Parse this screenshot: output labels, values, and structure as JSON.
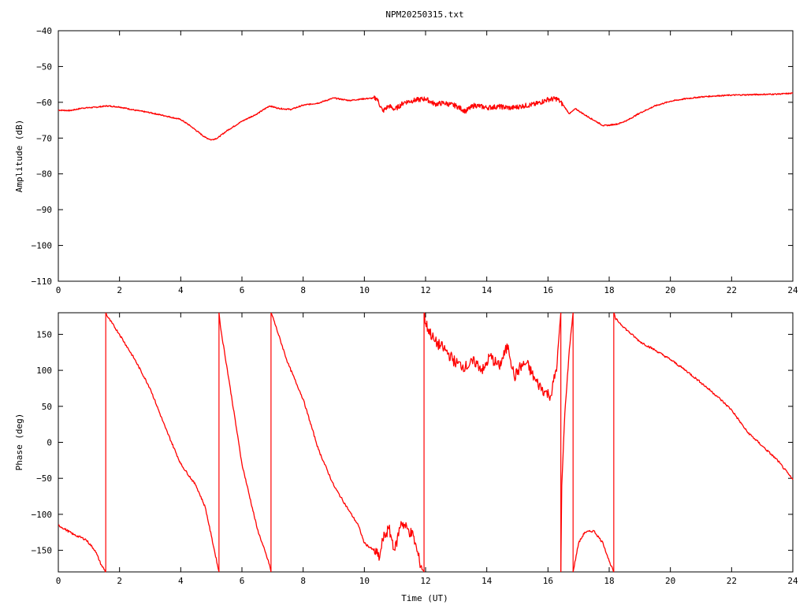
{
  "colors": {
    "trace": "#ff0000",
    "axis": "#000000",
    "background": "#ffffff"
  },
  "chart_data": [
    {
      "type": "line",
      "title": "NPM20250315.txt",
      "xlabel": "",
      "ylabel": "Amplitude (dB)",
      "xlim": [
        0,
        24
      ],
      "ylim": [
        -110,
        -40
      ],
      "xticks": [
        0,
        2,
        4,
        6,
        8,
        10,
        12,
        14,
        16,
        18,
        20,
        22,
        24
      ],
      "yticks": [
        -110,
        -100,
        -90,
        -80,
        -70,
        -60,
        -50,
        -40
      ],
      "grid": false,
      "series": [
        {
          "x": [
            0,
            0.4,
            0.8,
            1.2,
            1.6,
            2.0,
            2.5,
            3.0,
            3.5,
            4.0,
            4.3,
            4.6,
            4.8,
            5.0,
            5.2,
            5.5,
            6.0,
            6.5,
            6.9,
            7.2,
            7.6,
            8.0,
            8.5,
            9.0,
            9.5,
            10.0,
            10.4,
            10.6,
            10.8,
            11.0,
            11.3,
            11.6,
            12.0,
            12.3,
            12.6,
            13.0,
            13.3,
            13.6,
            14.0,
            14.4,
            14.8,
            15.2,
            15.6,
            16.0,
            16.3,
            16.5,
            16.7,
            16.9,
            17.2,
            17.5,
            17.8,
            18.0,
            18.3,
            18.6,
            19.0,
            19.5,
            20.0,
            20.5,
            21.0,
            21.5,
            22.0,
            22.5,
            23.0,
            23.5,
            24.0
          ],
          "values": [
            -62.2,
            -62.3,
            -61.6,
            -61.4,
            -61.0,
            -61.3,
            -62.2,
            -62.9,
            -63.8,
            -64.8,
            -66.5,
            -68.5,
            -69.8,
            -70.5,
            -70.0,
            -68.0,
            -65.3,
            -63.2,
            -61.0,
            -61.7,
            -62.0,
            -60.8,
            -60.2,
            -58.8,
            -59.5,
            -59.0,
            -58.8,
            -62.5,
            -61.0,
            -62.0,
            -60.0,
            -59.5,
            -59.0,
            -60.5,
            -60.2,
            -61.0,
            -62.5,
            -60.8,
            -61.5,
            -61.2,
            -61.6,
            -61.0,
            -60.5,
            -59.2,
            -59.0,
            -60.8,
            -63.2,
            -61.8,
            -63.5,
            -65.0,
            -66.5,
            -66.4,
            -66.0,
            -65.0,
            -63.0,
            -61.0,
            -59.7,
            -59.0,
            -58.5,
            -58.2,
            -58.0,
            -57.9,
            -57.8,
            -57.7,
            -57.5
          ]
        }
      ]
    },
    {
      "type": "line",
      "title": "",
      "xlabel": "Time (UT)",
      "ylabel": "Phase (deg)",
      "xlim": [
        0,
        24
      ],
      "ylim": [
        -180,
        180
      ],
      "xticks": [
        0,
        2,
        4,
        6,
        8,
        10,
        12,
        14,
        16,
        18,
        20,
        22,
        24
      ],
      "yticks": [
        -150,
        -100,
        -50,
        0,
        50,
        100,
        150
      ],
      "grid": false,
      "series": [
        {
          "segments": [
            {
              "x": [
                0,
                0.5,
                0.9,
                1.2,
                1.4,
                1.55
              ],
              "values": [
                -115,
                -128,
                -135,
                -150,
                -170,
                -180
              ]
            },
            {
              "x": [
                1.55,
                1.6,
                2.0,
                2.5,
                3.0,
                3.5,
                4.0,
                4.5,
                4.8,
                5.0,
                5.2,
                5.25
              ],
              "values": [
                180,
                175,
                150,
                115,
                75,
                20,
                -30,
                -60,
                -90,
                -130,
                -170,
                -180
              ]
            },
            {
              "x": [
                5.25,
                5.3,
                5.6,
                6.0,
                6.5,
                6.9,
                6.95
              ],
              "values": [
                180,
                160,
                80,
                -30,
                -120,
                -170,
                -180
              ]
            },
            {
              "x": [
                6.95,
                7.0,
                7.5,
                8.0,
                8.5,
                9.0,
                9.5,
                9.8,
                10.0,
                10.3,
                10.5,
                10.6,
                10.8,
                11.0,
                11.2,
                11.4,
                11.6,
                11.8,
                11.95
              ],
              "values": [
                180,
                175,
                110,
                60,
                -10,
                -60,
                -95,
                -115,
                -140,
                -150,
                -160,
                -135,
                -120,
                -150,
                -110,
                -120,
                -130,
                -165,
                -180
              ]
            },
            {
              "x": [
                11.95,
                12.0,
                12.3,
                12.6,
                13.0,
                13.3,
                13.6,
                13.9,
                14.1,
                14.4,
                14.7,
                14.9,
                15.1,
                15.3,
                15.6,
                15.9,
                16.1,
                16.3,
                16.42
              ],
              "values": [
                180,
                165,
                140,
                130,
                110,
                105,
                112,
                100,
                120,
                105,
                135,
                90,
                105,
                110,
                85,
                70,
                65,
                110,
                180
              ]
            },
            {
              "x": [
                16.42,
                16.45,
                16.55,
                16.7,
                16.82
              ],
              "values": [
                -180,
                -60,
                40,
                130,
                180
              ]
            },
            {
              "x": [
                16.82,
                17.0,
                17.2,
                17.5,
                17.8,
                18.0,
                18.15
              ],
              "values": [
                -180,
                -140,
                -125,
                -123,
                -140,
                -165,
                -180
              ]
            },
            {
              "x": [
                18.15,
                18.2,
                18.6,
                19.0,
                19.5,
                20.0,
                20.5,
                21.0,
                21.5,
                22.0,
                22.5,
                23.0,
                23.5,
                24.0
              ],
              "values": [
                180,
                172,
                155,
                140,
                128,
                115,
                100,
                83,
                65,
                45,
                15,
                -5,
                -25,
                -52
              ]
            }
          ]
        }
      ]
    }
  ]
}
